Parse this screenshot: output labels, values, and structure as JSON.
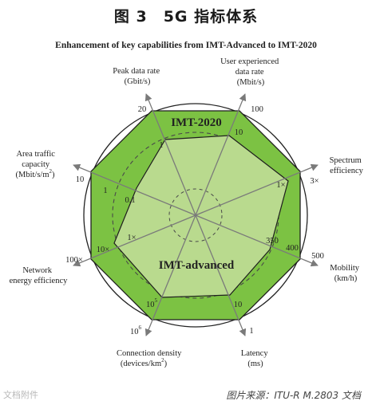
{
  "title": "图 3　5G 指标体系",
  "subtitle": "Enhancement of key capabilities from IMT-Advanced to IMT-2020",
  "source": "图片来源：ITU-R M.2803 文档",
  "watermark": "文档附件",
  "series": {
    "outer": "IMT-2020",
    "inner": "IMT-advanced"
  },
  "colors": {
    "outer_fill": "#7cc243",
    "inner_fill": "#b9da8e",
    "stroke": "#1e1e1e",
    "axis": "#7a7a7a",
    "dashed": "#555555"
  },
  "axes": {
    "peak": {
      "label_l1": "Peak data rate",
      "label_l2": "(Gbit/s)",
      "outer": "20",
      "inner": "1"
    },
    "user": {
      "label_l1": "User experienced",
      "label_l2": "data rate",
      "label_l3": "(Mbit/s)",
      "outer": "100",
      "inner": "10"
    },
    "spectrum": {
      "label_l1": "Spectrum",
      "label_l2": "efficiency",
      "outer": "3×",
      "inner": "1×"
    },
    "mobility": {
      "label_l1": "Mobility",
      "label_l2": "(km/h)",
      "outer": "500",
      "inner": "350",
      "inner2": "400"
    },
    "latency": {
      "label_l1": "Latency",
      "label_l2": "(ms)",
      "outer": "1",
      "inner": "10"
    },
    "connection": {
      "label_l1": "Connection density",
      "label_l2": "(devices/km",
      "label_sup": "2",
      "label_tail": ")",
      "outer_base": "10",
      "outer_exp": "6",
      "inner_base": "10",
      "inner_exp": "5"
    },
    "energy": {
      "label_l1": "Network",
      "label_l2": "energy efficiency",
      "outer": "100×",
      "inner": "10×",
      "inner2": "1×"
    },
    "area": {
      "label_l1": "Area traffic",
      "label_l2": "capacity",
      "label_l3": "(Mbit/s/m",
      "label_sup": "2",
      "label_tail": ")",
      "outer": "10",
      "inner": "1",
      "inner2": "0.1"
    }
  }
}
